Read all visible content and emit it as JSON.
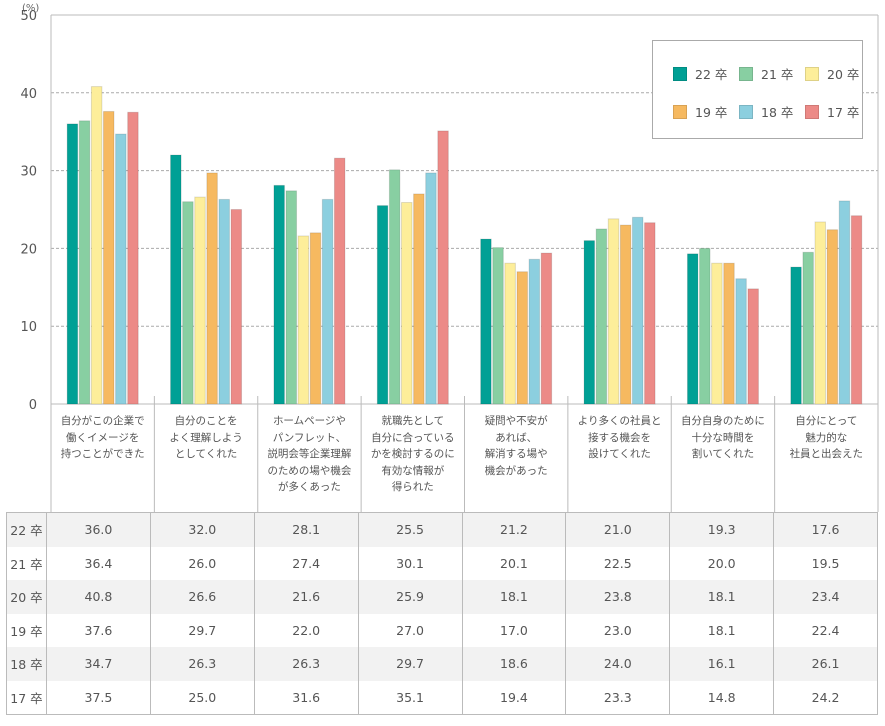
{
  "chart_data": {
    "type": "bar",
    "title": "",
    "ylabel": "(%)",
    "xlabel": "",
    "ylim": [
      0,
      50
    ],
    "yticks": [
      "0",
      "10",
      "20",
      "30",
      "40",
      "50"
    ],
    "grid": "horizontal-dashed",
    "legend_position": "top-right",
    "categories": [
      "自分がこの企業で\n働くイメージを\n持つことができた",
      "自分のことを\nよく理解しよう\nとしてくれた",
      "ホームページや\nパンフレット、\n説明会等企業理解\nのための場や機会\nが多くあった",
      "就職先として\n自分に合っている\nかを検討するのに\n有効な情報が\n得られた",
      "疑問や不安が\nあれば、\n解消する場や\n機会があった",
      "より多くの社員と\n接する機会を\n設けてくれた",
      "自分自身のために\n十分な時間を\n割いてくれた",
      "自分にとって\n魅力的な\n社員と出会えた"
    ],
    "series": [
      {
        "name": "22 卒",
        "color": "#00a095",
        "values": [
          36.0,
          32.0,
          28.1,
          25.5,
          21.2,
          21.0,
          19.3,
          17.6
        ]
      },
      {
        "name": "21 卒",
        "color": "#88cfa2",
        "values": [
          36.4,
          26.0,
          27.4,
          30.1,
          20.1,
          22.5,
          20.0,
          19.5
        ]
      },
      {
        "name": "20 卒",
        "color": "#fdee9a",
        "values": [
          40.8,
          26.6,
          21.6,
          25.9,
          18.1,
          23.8,
          18.1,
          23.4
        ]
      },
      {
        "name": "19 卒",
        "color": "#f6b960",
        "values": [
          37.6,
          29.7,
          22.0,
          27.0,
          17.0,
          23.0,
          18.1,
          22.4
        ]
      },
      {
        "name": "18 卒",
        "color": "#8ccfdf",
        "values": [
          34.7,
          26.3,
          26.3,
          29.7,
          18.6,
          24.0,
          16.1,
          26.1
        ]
      },
      {
        "name": "17 卒",
        "color": "#ec8a87",
        "values": [
          37.5,
          25.0,
          31.6,
          35.1,
          19.4,
          23.3,
          14.8,
          24.2
        ]
      }
    ]
  },
  "table": {
    "rows": [
      {
        "label": "22 卒",
        "cells": [
          "36.0",
          "32.0",
          "28.1",
          "25.5",
          "21.2",
          "21.0",
          "19.3",
          "17.6"
        ]
      },
      {
        "label": "21 卒",
        "cells": [
          "36.4",
          "26.0",
          "27.4",
          "30.1",
          "20.1",
          "22.5",
          "20.0",
          "19.5"
        ]
      },
      {
        "label": "20 卒",
        "cells": [
          "40.8",
          "26.6",
          "21.6",
          "25.9",
          "18.1",
          "23.8",
          "18.1",
          "23.4"
        ]
      },
      {
        "label": "19 卒",
        "cells": [
          "37.6",
          "29.7",
          "22.0",
          "27.0",
          "17.0",
          "23.0",
          "18.1",
          "22.4"
        ]
      },
      {
        "label": "18 卒",
        "cells": [
          "34.7",
          "26.3",
          "26.3",
          "29.7",
          "18.6",
          "24.0",
          "16.1",
          "26.1"
        ]
      },
      {
        "label": "17 卒",
        "cells": [
          "37.5",
          "25.0",
          "31.6",
          "35.1",
          "19.4",
          "23.3",
          "14.8",
          "24.2"
        ]
      }
    ]
  }
}
